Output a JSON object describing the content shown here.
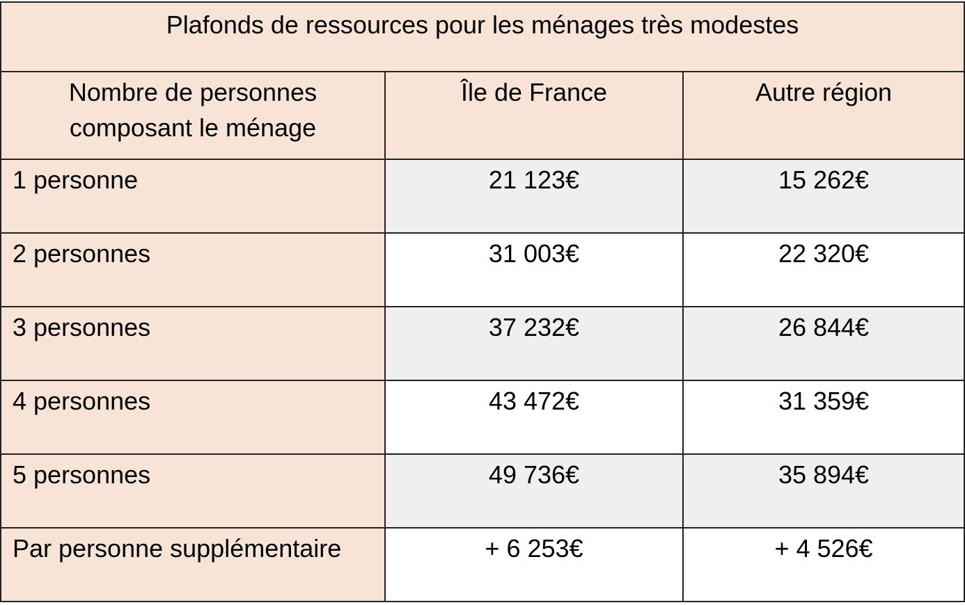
{
  "table": {
    "title": "Plafonds de ressources pour les ménages très modestes",
    "headers": {
      "col1_line1": "Nombre de personnes",
      "col1_line2": "composant le ménage",
      "col2": "Île de France",
      "col3": "Autre région"
    },
    "rows": [
      {
        "label": "1 personne",
        "idf": "21 123€",
        "other": "15 262€"
      },
      {
        "label": "2 personnes",
        "idf": "31 003€",
        "other": "22 320€"
      },
      {
        "label": "3 personnes",
        "idf": "37 232€",
        "other": "26 844€"
      },
      {
        "label": "4 personnes",
        "idf": "43 472€",
        "other": "31 359€"
      },
      {
        "label": "5 personnes",
        "idf": "49 736€",
        "other": "35 894€"
      },
      {
        "label": "Par personne supplémentaire",
        "idf": "+ 6 253€",
        "other": "+ 4 526€"
      }
    ],
    "colors": {
      "header_bg": "#f7e4d7",
      "shaded_row_bg": "#efefef",
      "border": "#222222"
    }
  }
}
